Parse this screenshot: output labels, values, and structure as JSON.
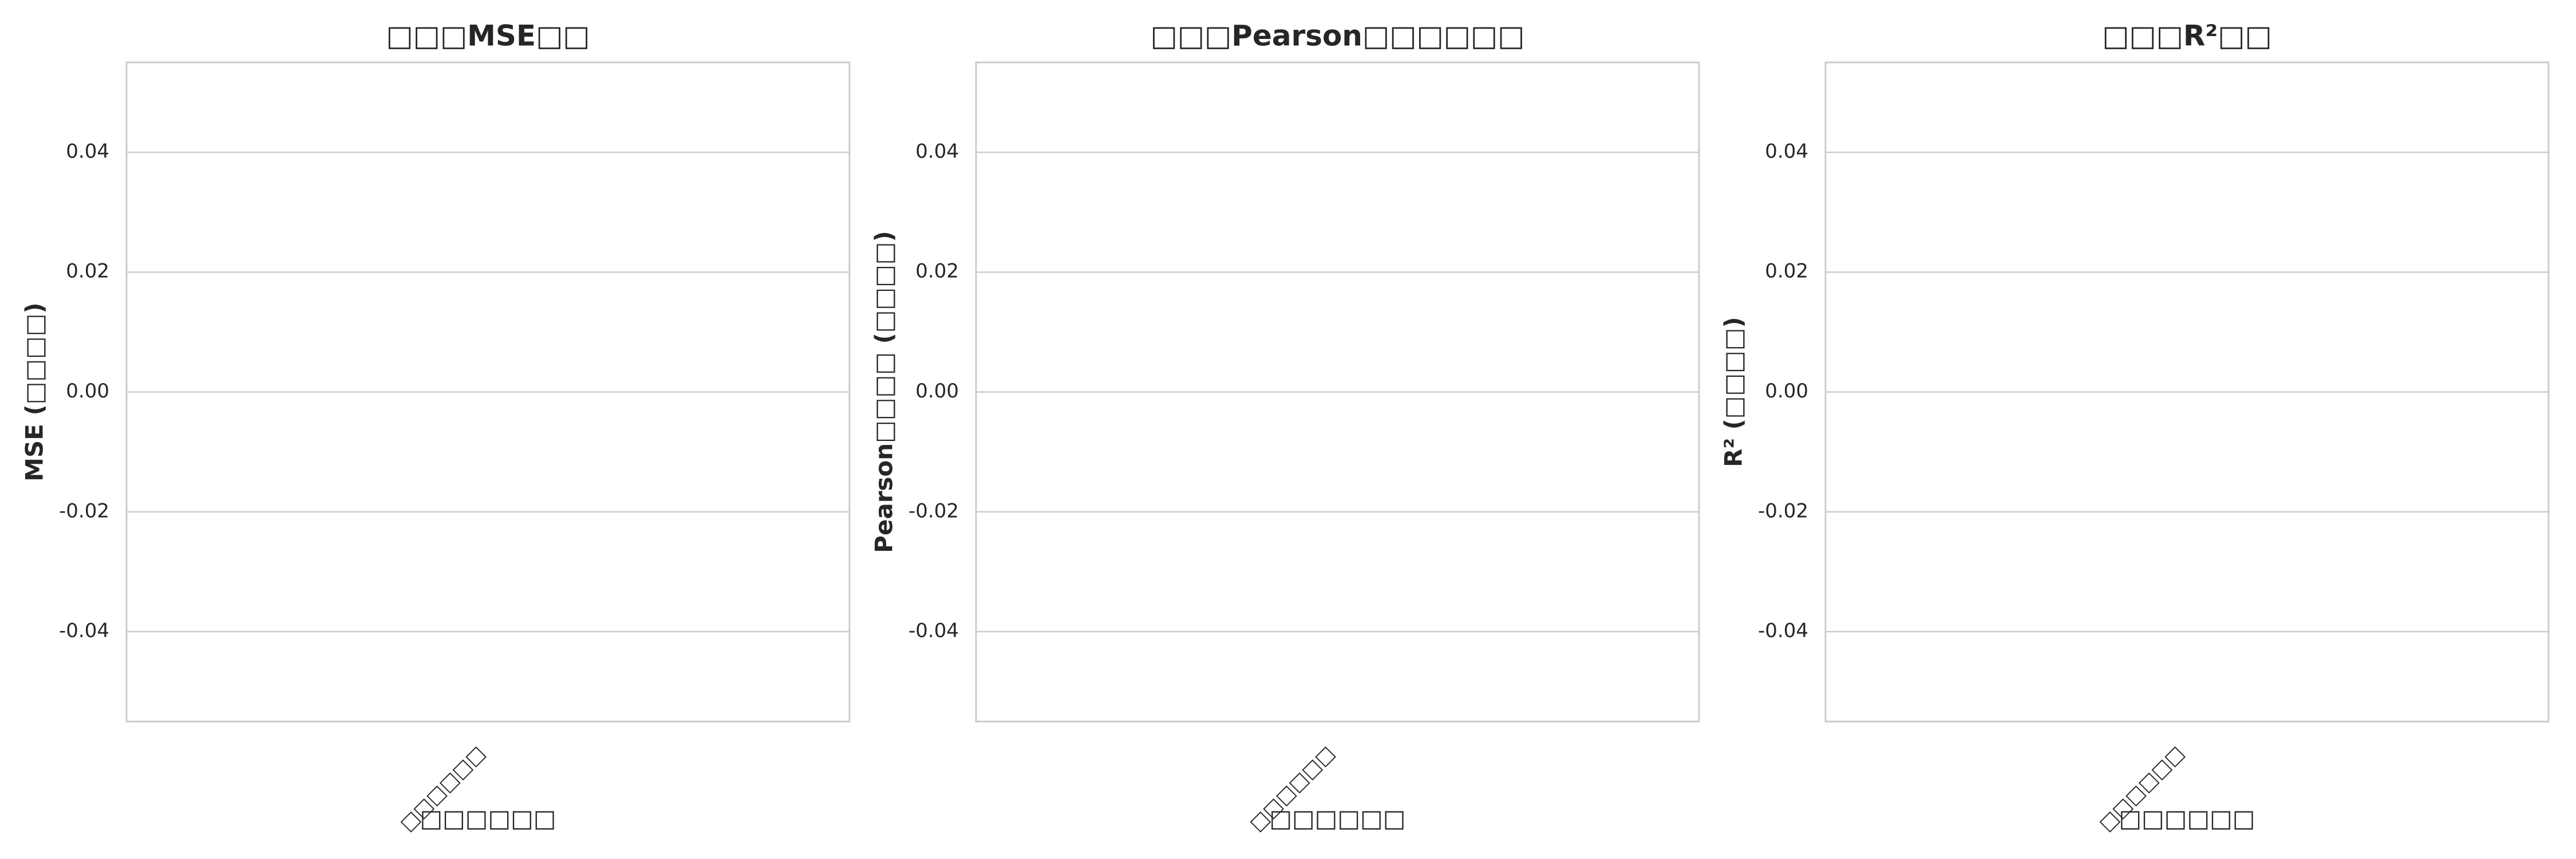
{
  "chart_data": [
    {
      "type": "bar",
      "title": "□□□MSE□□",
      "ylabel": "MSE (□□□□)",
      "xlabel": "□□□□□□",
      "categories": [
        "□□□□□□"
      ],
      "values": [
        null
      ],
      "color": "#4c72b0",
      "ylim": [
        -0.055,
        0.055
      ],
      "yticks": [
        -0.04,
        -0.02,
        {
          "value": 0,
          "label": "0.00"
        },
        0.02,
        0.04
      ],
      "grid": true
    },
    {
      "type": "bar",
      "title": "□□□Pearson□□□□□□",
      "ylabel": "Pearson□□□□ (□□□□)",
      "xlabel": "□□□□□□",
      "categories": [
        "□□□□□□"
      ],
      "values": [
        null
      ],
      "color": "#4c72b0",
      "ylim": [
        -0.055,
        0.055
      ],
      "yticks": [
        -0.04,
        -0.02,
        {
          "value": 0,
          "label": "0.00"
        },
        0.02,
        0.04
      ],
      "grid": true
    },
    {
      "type": "bar",
      "title": "□□□R²□□",
      "ylabel": "R² (□□□□)",
      "xlabel": "□□□□□□",
      "categories": [
        "□□□□□□"
      ],
      "values": [
        null
      ],
      "color": "#4c72b0",
      "ylim": [
        -0.055,
        0.055
      ],
      "yticks": [
        -0.04,
        -0.02,
        {
          "value": 0,
          "label": "0.00"
        },
        0.02,
        0.04
      ],
      "grid": true
    }
  ]
}
